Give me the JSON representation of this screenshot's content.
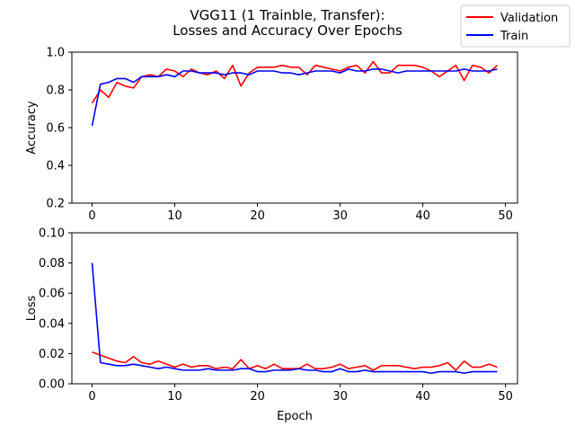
{
  "title_line1": "VGG11 (1 Trainble, Transfer):",
  "title_line2": "Losses and Accuracy Over Epochs",
  "colors": {
    "validation": "#ff0000",
    "train": "#0000ff"
  },
  "legend": {
    "placement": "top-right",
    "entries": [
      "Validation",
      "Train"
    ]
  },
  "chart_data": [
    {
      "type": "line",
      "ylabel": "Accuracy",
      "xlabel": "",
      "xlim": [
        -2.45,
        51.45
      ],
      "ylim": [
        0.2,
        1.0
      ],
      "xticks": [
        0,
        10,
        20,
        30,
        40,
        50
      ],
      "yticks": [
        0.2,
        0.4,
        0.6,
        0.8,
        1.0
      ],
      "ytick_labels": [
        "0.2",
        "0.4",
        "0.6",
        "0.8",
        "1.0"
      ],
      "x": [
        0,
        1,
        2,
        3,
        4,
        5,
        6,
        7,
        8,
        9,
        10,
        11,
        12,
        13,
        14,
        15,
        16,
        17,
        18,
        19,
        20,
        21,
        22,
        23,
        24,
        25,
        26,
        27,
        28,
        29,
        30,
        31,
        32,
        33,
        34,
        35,
        36,
        37,
        38,
        39,
        40,
        41,
        42,
        43,
        44,
        45,
        46,
        47,
        48,
        49
      ],
      "series": [
        {
          "name": "Validation",
          "values": [
            0.73,
            0.8,
            0.76,
            0.84,
            0.82,
            0.81,
            0.87,
            0.88,
            0.87,
            0.91,
            0.9,
            0.87,
            0.91,
            0.89,
            0.88,
            0.9,
            0.86,
            0.93,
            0.82,
            0.89,
            0.92,
            0.92,
            0.92,
            0.93,
            0.92,
            0.92,
            0.88,
            0.93,
            0.92,
            0.91,
            0.9,
            0.92,
            0.93,
            0.89,
            0.95,
            0.89,
            0.89,
            0.93,
            0.93,
            0.93,
            0.92,
            0.9,
            0.87,
            0.9,
            0.93,
            0.85,
            0.93,
            0.92,
            0.89,
            0.93
          ]
        },
        {
          "name": "Train",
          "values": [
            0.61,
            0.83,
            0.84,
            0.86,
            0.86,
            0.84,
            0.87,
            0.87,
            0.87,
            0.88,
            0.87,
            0.9,
            0.9,
            0.89,
            0.89,
            0.89,
            0.88,
            0.89,
            0.89,
            0.88,
            0.9,
            0.9,
            0.9,
            0.89,
            0.89,
            0.88,
            0.89,
            0.9,
            0.9,
            0.9,
            0.89,
            0.91,
            0.9,
            0.9,
            0.91,
            0.91,
            0.9,
            0.89,
            0.9,
            0.9,
            0.9,
            0.9,
            0.9,
            0.9,
            0.9,
            0.91,
            0.9,
            0.9,
            0.9,
            0.91
          ]
        }
      ]
    },
    {
      "type": "line",
      "ylabel": "Loss",
      "xlabel": "Epoch",
      "xlim": [
        -2.45,
        51.45
      ],
      "ylim": [
        0.0,
        0.1
      ],
      "xticks": [
        0,
        10,
        20,
        30,
        40,
        50
      ],
      "yticks": [
        0.0,
        0.02,
        0.04,
        0.06,
        0.08,
        0.1
      ],
      "ytick_labels": [
        "0.00",
        "0.02",
        "0.04",
        "0.06",
        "0.08",
        "0.10"
      ],
      "x": [
        0,
        1,
        2,
        3,
        4,
        5,
        6,
        7,
        8,
        9,
        10,
        11,
        12,
        13,
        14,
        15,
        16,
        17,
        18,
        19,
        20,
        21,
        22,
        23,
        24,
        25,
        26,
        27,
        28,
        29,
        30,
        31,
        32,
        33,
        34,
        35,
        36,
        37,
        38,
        39,
        40,
        41,
        42,
        43,
        44,
        45,
        46,
        47,
        48,
        49
      ],
      "series": [
        {
          "name": "Validation",
          "values": [
            0.021,
            0.019,
            0.017,
            0.015,
            0.014,
            0.018,
            0.014,
            0.013,
            0.015,
            0.013,
            0.011,
            0.013,
            0.011,
            0.012,
            0.012,
            0.01,
            0.011,
            0.01,
            0.016,
            0.01,
            0.012,
            0.01,
            0.013,
            0.01,
            0.01,
            0.01,
            0.013,
            0.01,
            0.01,
            0.011,
            0.013,
            0.01,
            0.011,
            0.012,
            0.009,
            0.012,
            0.012,
            0.012,
            0.011,
            0.01,
            0.011,
            0.011,
            0.012,
            0.014,
            0.009,
            0.015,
            0.011,
            0.011,
            0.013,
            0.011
          ]
        },
        {
          "name": "Train",
          "values": [
            0.08,
            0.014,
            0.013,
            0.012,
            0.012,
            0.013,
            0.012,
            0.011,
            0.01,
            0.011,
            0.01,
            0.009,
            0.009,
            0.009,
            0.01,
            0.009,
            0.009,
            0.009,
            0.01,
            0.01,
            0.008,
            0.008,
            0.009,
            0.009,
            0.009,
            0.01,
            0.009,
            0.009,
            0.008,
            0.008,
            0.01,
            0.008,
            0.008,
            0.009,
            0.008,
            0.008,
            0.008,
            0.008,
            0.008,
            0.008,
            0.008,
            0.007,
            0.008,
            0.008,
            0.008,
            0.007,
            0.008,
            0.008,
            0.008,
            0.008
          ]
        }
      ]
    }
  ]
}
